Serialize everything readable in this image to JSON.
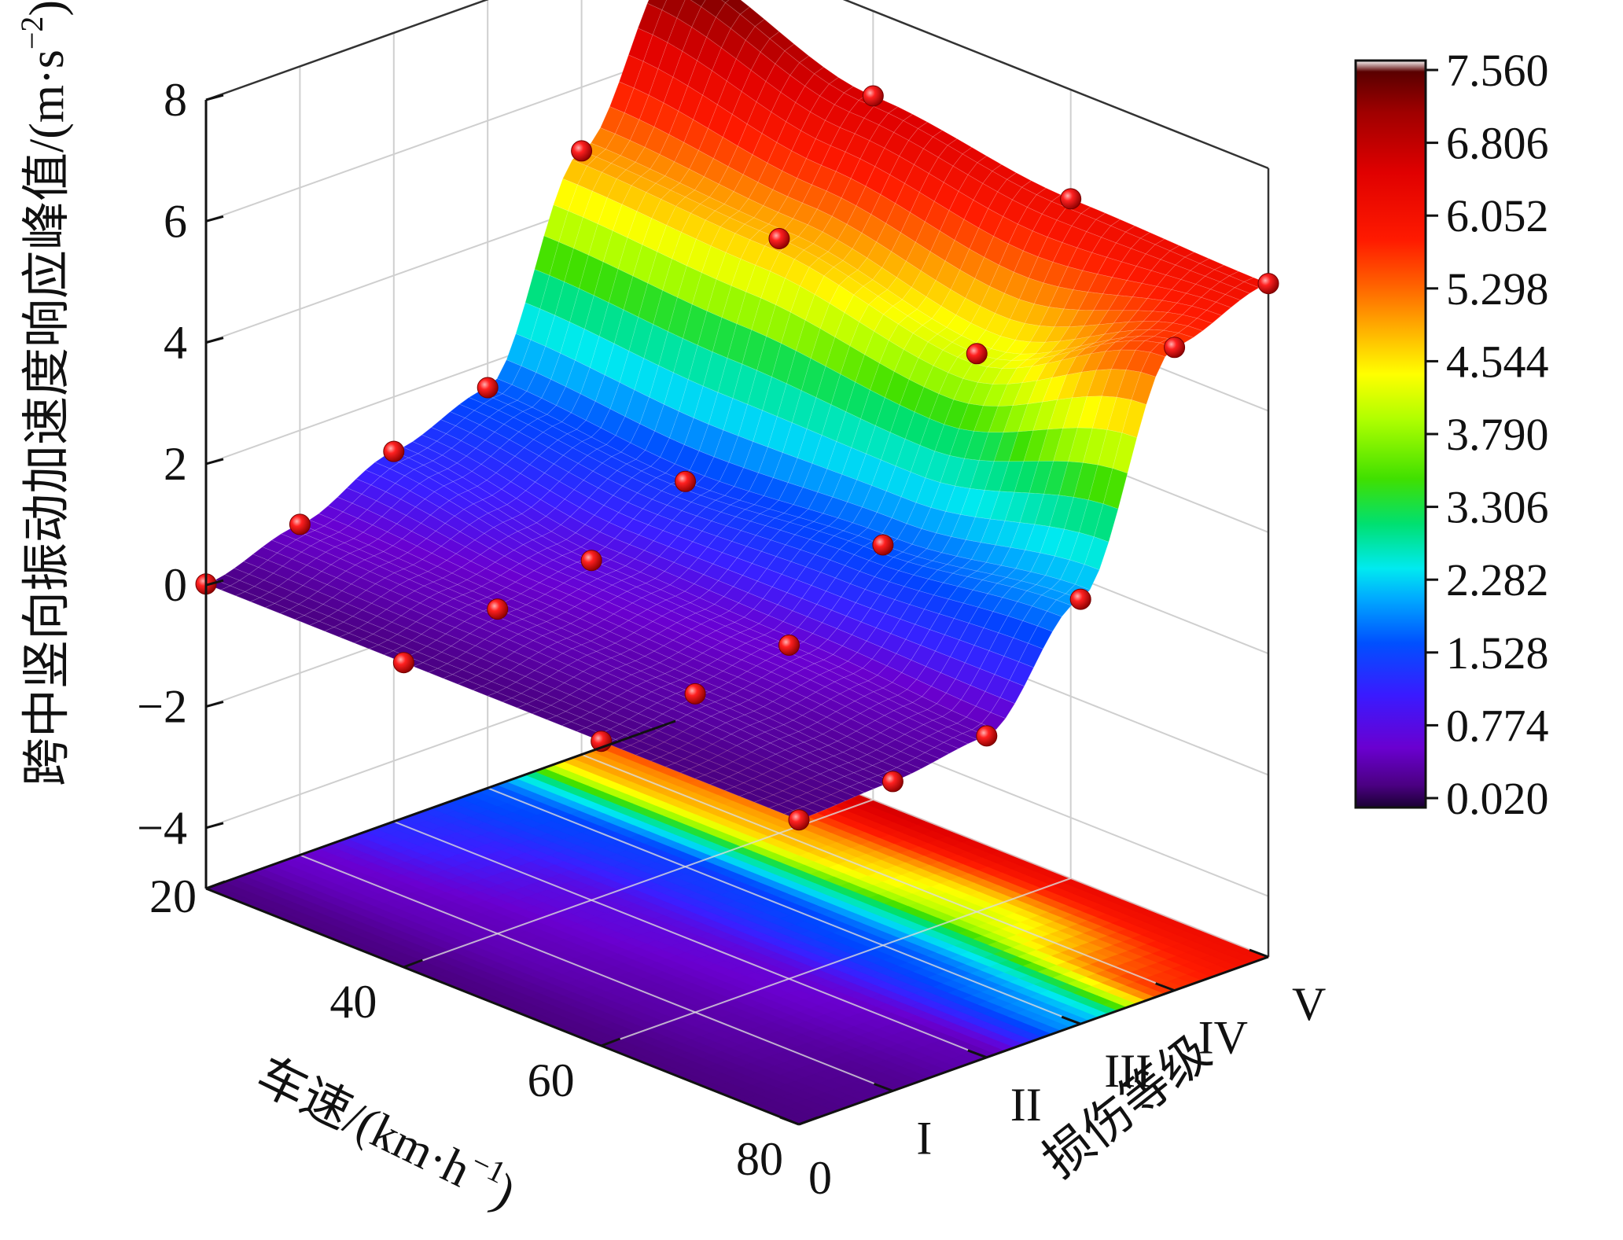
{
  "chart_data": {
    "type": "surface3d",
    "x_axis": {
      "label": "车速/(km·h",
      "label_sup": "−1",
      "label_tail": ")",
      "ticks": [
        "20",
        "40",
        "60",
        "80"
      ],
      "values": [
        20,
        40,
        60,
        80
      ]
    },
    "y_axis": {
      "label": "损伤等级",
      "ticks": [
        "0",
        "I",
        "II",
        "III",
        "IV",
        "V"
      ],
      "values": [
        0,
        1,
        2,
        3,
        4,
        5
      ]
    },
    "z_axis": {
      "label": "跨中竖向振动加速度响应峰值/(m·s",
      "label_sup": "−2",
      "label_tail": ")",
      "ticks": [
        "8",
        "6",
        "4",
        "2",
        "0",
        "−2",
        "−4"
      ],
      "values": [
        8,
        6,
        4,
        2,
        0,
        -2,
        -4
      ],
      "range": [
        -5,
        8
      ]
    },
    "colorbar": {
      "labels": [
        "7.560",
        "6.806",
        "6.052",
        "5.298",
        "4.544",
        "3.790",
        "3.306",
        "2.282",
        "1.528",
        "0.774",
        "0.020"
      ],
      "values": [
        7.56,
        6.806,
        6.052,
        5.298,
        4.544,
        3.79,
        3.306,
        2.282,
        1.528,
        0.774,
        0.02
      ]
    },
    "projection": "contour on floor",
    "grid": true,
    "z_values": [
      [
        0.02,
        0.45,
        1.1,
        1.6,
        4.95,
        7.56
      ],
      [
        0.02,
        0.35,
        0.6,
        1.35,
        4.8,
        6.6
      ],
      [
        0.02,
        0.25,
        0.5,
        1.6,
        4.2,
        6.2
      ],
      [
        0.02,
        0.1,
        0.3,
        2.0,
        5.6,
        6.1
      ]
    ]
  }
}
